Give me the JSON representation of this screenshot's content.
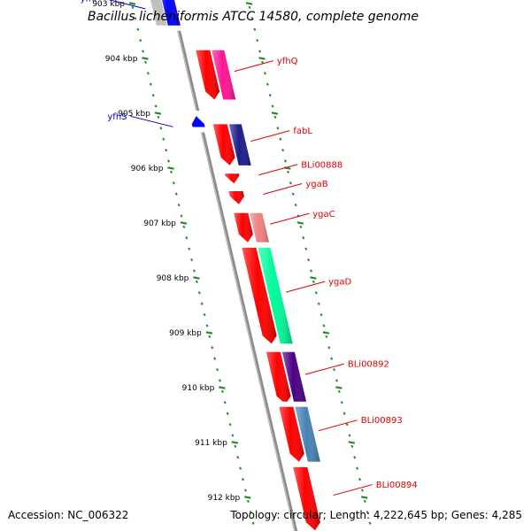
{
  "title": "Bacillus licheniformis ATCC 14580, complete genome",
  "footer": {
    "accession": "Accession: NC_006322",
    "summary": "Topology: circular; Length: 4,222,645 bp; Genes: 4,285"
  },
  "colors": {
    "backbone": "#8c8c8c",
    "tick": "#228b22",
    "label_forward": "#e00000",
    "label_reverse": "#0000c8"
  },
  "scale_labels": [
    {
      "label": "903 kbp",
      "kbp": 903
    },
    {
      "label": "904 kbp",
      "kbp": 904
    },
    {
      "label": "905 kbp",
      "kbp": 905
    },
    {
      "label": "906 kbp",
      "kbp": 906
    },
    {
      "label": "907 kbp",
      "kbp": 907
    },
    {
      "label": "908 kbp",
      "kbp": 908
    },
    {
      "label": "909 kbp",
      "kbp": 909
    },
    {
      "label": "910 kbp",
      "kbp": 910
    },
    {
      "label": "911 kbp",
      "kbp": 911
    },
    {
      "label": "912 kbp",
      "kbp": 912
    }
  ],
  "features": [
    {
      "name": "yfhP",
      "strand": "reverse",
      "start_kbp": 902.6,
      "end_kbp": 903.4,
      "label": "yfhP",
      "cog_color": "#0000ff"
    },
    {
      "name": "yfhQ",
      "strand": "forward",
      "start_kbp": 903.85,
      "end_kbp": 904.75,
      "label": "yfhQ",
      "cog_color": "#ff1493"
    },
    {
      "name": "yfhS",
      "strand": "reverse",
      "start_kbp": 905.05,
      "end_kbp": 905.25,
      "label": "yfhS",
      "cog_color": ""
    },
    {
      "name": "fabL",
      "strand": "forward",
      "start_kbp": 905.2,
      "end_kbp": 905.95,
      "label": "fabL",
      "cog_color": "#1c1c8c"
    },
    {
      "name": "BLi00888",
      "strand": "forward",
      "start_kbp": 906.1,
      "end_kbp": 906.28,
      "label": "BLi00888",
      "cog_color": ""
    },
    {
      "name": "ygaB",
      "strand": "forward",
      "start_kbp": 906.42,
      "end_kbp": 906.66,
      "label": "ygaB",
      "cog_color": ""
    },
    {
      "name": "ygaC",
      "strand": "forward",
      "start_kbp": 906.82,
      "end_kbp": 907.35,
      "label": "ygaC",
      "cog_color": "#f08080"
    },
    {
      "name": "ygaD",
      "strand": "forward",
      "start_kbp": 907.45,
      "end_kbp": 909.2,
      "label": "ygaD",
      "cog_color": "#00fa9a"
    },
    {
      "name": "BLi00892",
      "strand": "forward",
      "start_kbp": 909.35,
      "end_kbp": 910.3,
      "label": "BLi00892",
      "cog_color": "#4b0082"
    },
    {
      "name": "BLi00893",
      "strand": "forward",
      "start_kbp": 910.35,
      "end_kbp": 911.35,
      "label": "BLi00893",
      "cog_color": "#4682b4"
    },
    {
      "name": "BLi00894",
      "strand": "forward",
      "start_kbp": 911.45,
      "end_kbp": 912.6,
      "label": "BLi00894",
      "cog_color": ""
    }
  ]
}
